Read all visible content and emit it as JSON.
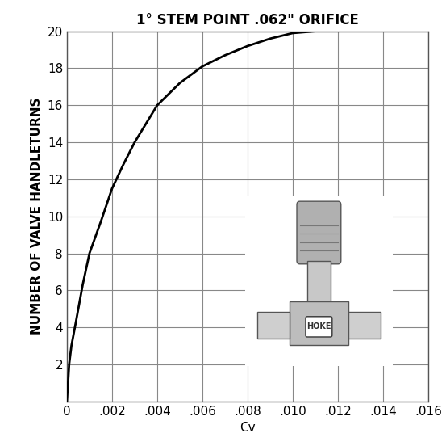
{
  "chart_data": {
    "type": "line",
    "title": "1° STEM POINT .062\" ORIFICE",
    "x_label": "Cv",
    "y_label": "NUMBER OF VALVE HANDLETURNS",
    "x": [
      0,
      0.0001,
      0.0002,
      0.0004,
      0.0007,
      0.001,
      0.0015,
      0.002,
      0.0025,
      0.003,
      0.0035,
      0.004,
      0.005,
      0.006,
      0.007,
      0.008,
      0.009,
      0.01,
      0.011,
      0.012
    ],
    "series": [
      {
        "name": "1° STEM POINT",
        "color": "#000000",
        "values": [
          0,
          2,
          3,
          4.3,
          6.3,
          8,
          9.7,
          11.5,
          12.8,
          14,
          15,
          16,
          17.2,
          18.1,
          18.7,
          19.2,
          19.6,
          19.9,
          20,
          20
        ]
      }
    ],
    "xlim": [
      0,
      0.016
    ],
    "xticks": [
      {
        "value": 0,
        "label": "0"
      },
      {
        "value": 0.002,
        "label": ".002"
      },
      {
        "value": 0.004,
        "label": ".004"
      },
      {
        "value": 0.006,
        "label": ".006"
      },
      {
        "value": 0.008,
        "label": ".008"
      },
      {
        "value": 0.01,
        "label": ".010"
      },
      {
        "value": 0.012,
        "label": ".012"
      },
      {
        "value": 0.014,
        "label": ".014"
      },
      {
        "value": 0.016,
        "label": ".016"
      }
    ],
    "ylim": [
      0,
      20
    ],
    "yticks": [
      2,
      4,
      6,
      8,
      10,
      12,
      14,
      16,
      18,
      20
    ],
    "grid": true,
    "inset_text": "HOKE"
  }
}
